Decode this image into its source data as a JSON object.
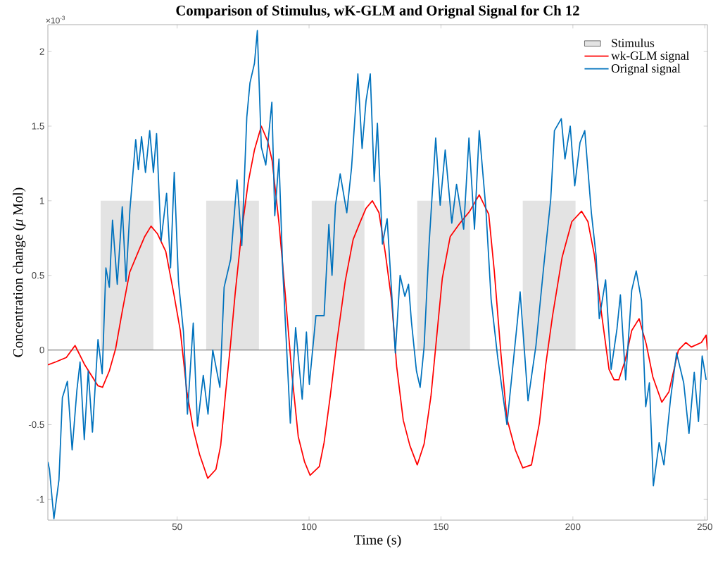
{
  "chart_data": {
    "type": "line",
    "title": "Comparison of Stimulus, wK-GLM and Orignal Signal for Ch 12",
    "xlabel": "Time (s)",
    "ylabel": "Concentration change (*μ* Mol)",
    "annotations": [
      "×10$^{-3}$"
    ],
    "xlim": [
      1,
      251
    ],
    "ylim": [
      -1.14,
      2.18
    ],
    "xticks": [
      50,
      100,
      150,
      200,
      250
    ],
    "yticks": [
      -1,
      -0.5,
      0,
      0.5,
      1,
      1.5,
      2
    ],
    "legend": "top right",
    "ref_lines": [
      {
        "axis": "y",
        "value": 0,
        "color": "#808080"
      }
    ],
    "series": [
      {
        "name": "Stimulus",
        "type": "area",
        "color": "#e3e3e3",
        "x": [
          21,
          21,
          41,
          41,
          61,
          61,
          81,
          81,
          101,
          101,
          121,
          121,
          141,
          141,
          161,
          161,
          181,
          181,
          201,
          201
        ],
        "values": [
          0,
          1,
          1,
          0,
          0,
          1,
          1,
          0,
          0,
          1,
          1,
          0,
          0,
          1,
          1,
          0,
          0,
          1,
          1,
          0
        ]
      },
      {
        "name": "wk-GLM signal",
        "color": "#ff0000",
        "x": [
          1,
          4,
          8,
          11.3,
          15,
          20,
          21.7,
          24.3,
          26.7,
          29.2,
          32,
          35.3,
          37.7,
          40.1,
          42.5,
          45.7,
          48.7,
          51.2,
          53.7,
          56.1,
          58.5,
          61.6,
          64.7,
          66.5,
          68.4,
          70.2,
          72,
          74.5,
          76.9,
          79.3,
          81.9,
          84.3,
          86,
          88.6,
          91,
          93.5,
          95.9,
          98.3,
          100.4,
          103.9,
          105.7,
          108.1,
          110.5,
          113.7,
          116.7,
          119.2,
          121.6,
          124,
          126.5,
          128.9,
          131.3,
          133.2,
          135.7,
          138.2,
          141,
          143.6,
          146.2,
          148,
          150.5,
          153.5,
          157.2,
          160.9,
          164.5,
          168.1,
          170.2,
          172.7,
          175,
          178.2,
          181,
          184.3,
          187.3,
          189.7,
          192.3,
          195.9,
          199.6,
          203.3,
          205.7,
          208.1,
          210.5,
          213.7,
          215.6,
          217.4,
          219.8,
          222.3,
          225.1,
          227.8,
          230.3,
          233.7,
          236.4,
          240,
          242.8,
          244.9,
          248.7,
          250.5,
          251
        ],
        "values": [
          -0.1,
          -0.08,
          -0.05,
          0.03,
          -0.1,
          -0.24,
          -0.25,
          -0.14,
          0.01,
          0.26,
          0.52,
          0.66,
          0.76,
          0.83,
          0.78,
          0.66,
          0.38,
          0.13,
          -0.28,
          -0.53,
          -0.7,
          -0.86,
          -0.8,
          -0.64,
          -0.28,
          0.03,
          0.38,
          0.8,
          1.12,
          1.34,
          1.5,
          1.4,
          1.27,
          0.85,
          0.37,
          -0.16,
          -0.58,
          -0.75,
          -0.84,
          -0.78,
          -0.62,
          -0.3,
          0.05,
          0.46,
          0.74,
          0.85,
          0.95,
          1.0,
          0.92,
          0.65,
          0.33,
          -0.11,
          -0.47,
          -0.64,
          -0.77,
          -0.63,
          -0.31,
          0.02,
          0.48,
          0.76,
          0.85,
          0.93,
          1.04,
          0.91,
          0.53,
          -0.02,
          -0.46,
          -0.67,
          -0.79,
          -0.77,
          -0.49,
          -0.1,
          0.23,
          0.62,
          0.86,
          0.93,
          0.86,
          0.64,
          0.29,
          -0.13,
          -0.2,
          -0.2,
          -0.07,
          0.13,
          0.21,
          0.04,
          -0.18,
          -0.35,
          -0.28,
          0.0,
          0.05,
          0.02,
          0.05,
          0.1,
          0.0
        ]
      },
      {
        "name": "Orignal signal",
        "color": "#0072bd",
        "x": [
          1,
          1.6,
          3.3,
          5.2,
          6.5,
          8.4,
          10.2,
          12,
          13.2,
          14.8,
          16.3,
          17.9,
          20,
          21.6,
          23,
          24.3,
          25.5,
          27.3,
          29.2,
          30.6,
          32.1,
          34.3,
          35.3,
          36.5,
          38,
          39.6,
          41,
          42.2,
          43.9,
          46,
          47.5,
          48.9,
          50.5,
          52.4,
          53.9,
          56.1,
          57.7,
          59.9,
          61.7,
          63.5,
          66.2,
          67.8,
          70.3,
          72.7,
          74.5,
          76.4,
          77.6,
          79.3,
          80.4,
          81.9,
          83.6,
          85.9,
          87,
          88.6,
          90,
          92.9,
          94.9,
          97.4,
          99,
          100.1,
          102.6,
          105.7,
          107.5,
          108.7,
          110,
          111.8,
          114.3,
          116.1,
          118.5,
          120.1,
          121.6,
          123.2,
          124.7,
          125.9,
          127.8,
          129.6,
          132.7,
          134.5,
          136.3,
          137.7,
          138.8,
          140.7,
          142.1,
          143.6,
          145.5,
          148,
          149.7,
          151.6,
          154.1,
          155.9,
          158.6,
          160.6,
          162.7,
          164.5,
          167,
          169,
          171.5,
          175,
          179,
          180,
          183,
          186,
          189,
          191.6,
          193,
          195.6,
          197,
          199,
          200.7,
          202.7,
          204.5,
          207,
          208.8,
          210,
          212.4,
          214.5,
          216.7,
          218,
          220,
          222.3,
          224,
          226,
          227.6,
          229,
          230.5,
          232.7,
          234.5,
          237,
          239.3,
          242,
          244,
          246,
          247.6,
          249,
          250.5
        ],
        "values": [
          -0.75,
          -0.8,
          -1.13,
          -0.87,
          -0.32,
          -0.21,
          -0.67,
          -0.27,
          -0.08,
          -0.6,
          -0.14,
          -0.55,
          0.07,
          -0.16,
          0.55,
          0.42,
          0.87,
          0.44,
          0.96,
          0.46,
          0.94,
          1.41,
          1.21,
          1.43,
          1.19,
          1.47,
          1.19,
          1.45,
          0.73,
          1.05,
          0.55,
          1.19,
          0.46,
          0.12,
          -0.43,
          0.18,
          -0.51,
          -0.17,
          -0.43,
          0.0,
          -0.25,
          0.42,
          0.61,
          1.14,
          0.7,
          1.56,
          1.79,
          1.92,
          2.14,
          1.36,
          1.24,
          1.66,
          0.9,
          1.28,
          0.55,
          -0.49,
          0.15,
          -0.33,
          0.12,
          -0.23,
          0.23,
          0.23,
          0.84,
          0.5,
          0.97,
          1.18,
          0.92,
          1.22,
          1.85,
          1.35,
          1.67,
          1.85,
          1.13,
          1.52,
          0.71,
          0.88,
          -0.02,
          0.5,
          0.36,
          0.44,
          0.19,
          -0.14,
          -0.25,
          0.02,
          0.71,
          1.42,
          0.97,
          1.34,
          0.85,
          1.11,
          0.81,
          1.42,
          0.81,
          1.47,
          0.95,
          0.34,
          -0.05,
          -0.5,
          0.2,
          0.39,
          -0.34,
          0.03,
          0.57,
          1.01,
          1.47,
          1.55,
          1.28,
          1.5,
          1.1,
          1.39,
          1.47,
          0.92,
          0.63,
          0.21,
          0.47,
          -0.13,
          0.14,
          0.37,
          -0.2,
          0.4,
          0.53,
          0.33,
          -0.38,
          -0.22,
          -0.91,
          -0.62,
          -0.77,
          -0.33,
          -0.02,
          -0.22,
          -0.56,
          -0.15,
          -0.48,
          -0.04,
          -0.2
        ]
      }
    ]
  }
}
